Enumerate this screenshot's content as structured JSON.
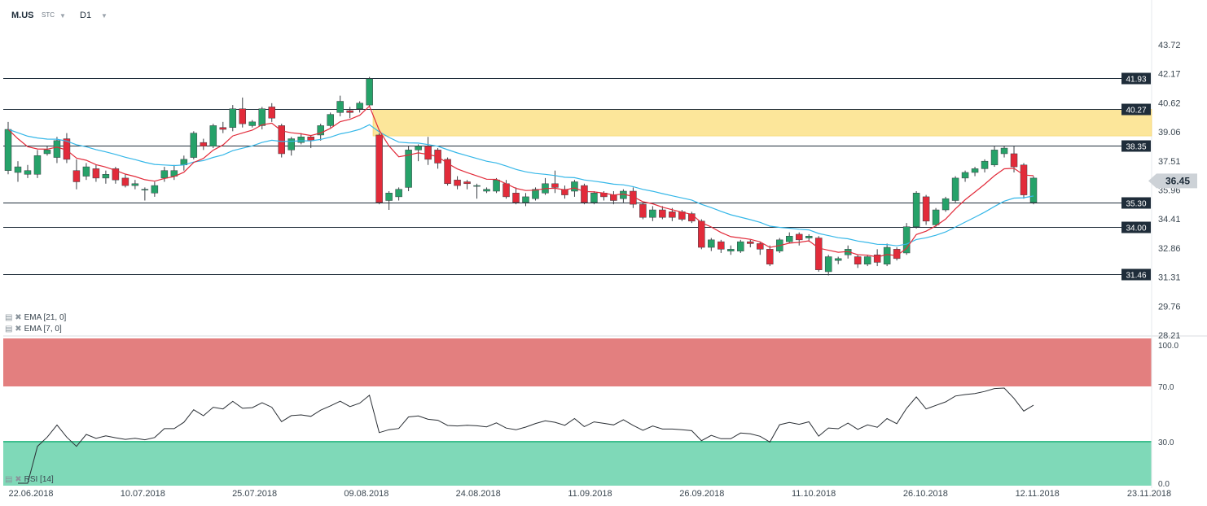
{
  "header": {
    "symbol": "M.US",
    "mode": "STC",
    "timeframe": "D1"
  },
  "indicators": [
    {
      "label": "EMA [21, 0]"
    },
    {
      "label": "EMA [7, 0]"
    }
  ],
  "rsi_label": "RSI [14]",
  "current_price": "36.45",
  "colors": {
    "bull": "#26a269",
    "bear": "#e22b3a",
    "ema7": "#e22b3a",
    "ema21": "#35b7e8",
    "zone": "#fce69a",
    "rsi_overbought": "#e37f7f",
    "rsi_oversold": "#7fd9b8"
  },
  "chart_data": {
    "type": "candlestick",
    "price_axis_ticks": [
      "43.72",
      "42.17",
      "40.62",
      "39.06",
      "37.51",
      "35.96",
      "34.41",
      "32.86",
      "31.31",
      "29.76",
      "28.21"
    ],
    "price_range": [
      28.21,
      43.72
    ],
    "date_labels": [
      "22.06.2018",
      "10.07.2018",
      "25.07.2018",
      "09.08.2018",
      "24.08.2018",
      "11.09.2018",
      "26.09.2018",
      "11.10.2018",
      "26.10.2018",
      "12.11.2018",
      "23.11.2018"
    ],
    "levels": [
      {
        "label": "41.93",
        "value": 41.93
      },
      {
        "label": "40.27",
        "value": 40.27
      },
      {
        "label": "38.35",
        "value": 38.35
      },
      {
        "label": "35.30",
        "value": 35.3
      },
      {
        "label": "34.00",
        "value": 34.0
      },
      {
        "label": "31.46",
        "value": 31.46
      }
    ],
    "zone": [
      38.85,
      40.27
    ],
    "candles": [
      [
        37.0,
        39.2,
        36.8,
        39.6
      ],
      [
        36.9,
        37.2,
        36.4,
        37.5
      ],
      [
        36.8,
        37.0,
        36.6,
        37.3
      ],
      [
        36.8,
        37.8,
        36.6,
        38.1
      ],
      [
        37.9,
        38.1,
        37.8,
        38.3
      ],
      [
        37.7,
        38.6,
        37.4,
        38.8
      ],
      [
        38.7,
        37.6,
        37.4,
        39.0
      ],
      [
        37.0,
        36.4,
        36.0,
        37.6
      ],
      [
        36.7,
        37.2,
        36.5,
        37.4
      ],
      [
        37.1,
        36.6,
        36.4,
        37.3
      ],
      [
        36.6,
        36.8,
        36.3,
        37.0
      ],
      [
        37.1,
        36.5,
        36.3,
        37.2
      ],
      [
        36.6,
        36.2,
        36.1,
        36.8
      ],
      [
        36.2,
        36.3,
        36.0,
        36.5
      ],
      [
        36.0,
        36.0,
        35.4,
        36.1
      ],
      [
        35.8,
        36.2,
        35.6,
        36.4
      ],
      [
        36.6,
        37.0,
        36.4,
        37.2
      ],
      [
        36.7,
        37.0,
        36.5,
        37.3
      ],
      [
        37.3,
        37.6,
        37.0,
        37.8
      ],
      [
        37.7,
        39.0,
        37.6,
        39.1
      ],
      [
        38.5,
        38.3,
        38.1,
        38.7
      ],
      [
        38.3,
        39.4,
        38.2,
        39.5
      ],
      [
        39.3,
        39.2,
        39.0,
        39.6
      ],
      [
        39.3,
        40.3,
        39.1,
        40.5
      ],
      [
        40.3,
        39.5,
        39.3,
        40.9
      ],
      [
        39.4,
        39.6,
        39.3,
        39.7
      ],
      [
        39.4,
        40.3,
        39.2,
        40.4
      ],
      [
        40.4,
        39.8,
        39.6,
        40.6
      ],
      [
        39.4,
        37.9,
        37.7,
        39.5
      ],
      [
        38.1,
        38.7,
        37.8,
        38.8
      ],
      [
        38.5,
        38.8,
        38.4,
        39.0
      ],
      [
        38.8,
        38.6,
        38.2,
        38.9
      ],
      [
        38.9,
        39.4,
        38.6,
        39.5
      ],
      [
        39.4,
        40.0,
        39.3,
        40.1
      ],
      [
        40.1,
        40.7,
        39.9,
        41.0
      ],
      [
        40.2,
        40.1,
        39.8,
        40.4
      ],
      [
        40.3,
        40.6,
        40.1,
        40.7
      ],
      [
        40.5,
        41.9,
        40.4,
        42.0
      ],
      [
        38.9,
        35.3,
        35.2,
        39.0
      ],
      [
        35.4,
        35.8,
        34.9,
        35.9
      ],
      [
        35.6,
        36.0,
        35.4,
        36.1
      ],
      [
        36.1,
        38.1,
        35.9,
        38.3
      ],
      [
        38.1,
        38.3,
        37.5,
        38.4
      ],
      [
        38.3,
        37.6,
        37.3,
        38.8
      ],
      [
        38.1,
        37.4,
        37.1,
        38.2
      ],
      [
        37.6,
        36.3,
        36.2,
        37.7
      ],
      [
        36.5,
        36.2,
        36.0,
        36.7
      ],
      [
        36.4,
        36.3,
        36.0,
        36.5
      ],
      [
        36.2,
        36.2,
        35.5,
        36.3
      ],
      [
        35.9,
        36.0,
        35.8,
        36.1
      ],
      [
        35.9,
        36.5,
        35.8,
        36.6
      ],
      [
        36.3,
        35.6,
        35.5,
        36.5
      ],
      [
        35.8,
        35.3,
        35.2,
        36.1
      ],
      [
        35.3,
        35.6,
        35.1,
        35.8
      ],
      [
        35.5,
        36.0,
        35.4,
        36.1
      ],
      [
        35.8,
        36.3,
        35.7,
        36.6
      ],
      [
        36.3,
        36.1,
        35.8,
        37.0
      ],
      [
        36.0,
        35.7,
        35.5,
        36.2
      ],
      [
        35.9,
        36.4,
        35.6,
        36.5
      ],
      [
        36.2,
        35.3,
        35.2,
        36.3
      ],
      [
        35.3,
        35.8,
        35.2,
        35.9
      ],
      [
        35.8,
        35.6,
        35.4,
        35.9
      ],
      [
        35.7,
        35.4,
        35.2,
        35.9
      ],
      [
        35.5,
        35.9,
        35.3,
        36.0
      ],
      [
        35.9,
        35.2,
        35.0,
        36.1
      ],
      [
        35.2,
        34.5,
        34.4,
        35.3
      ],
      [
        34.5,
        34.9,
        34.3,
        35.1
      ],
      [
        34.9,
        34.5,
        34.4,
        35.1
      ],
      [
        34.8,
        34.5,
        34.3,
        35.0
      ],
      [
        34.8,
        34.4,
        34.3,
        34.9
      ],
      [
        34.7,
        34.3,
        34.2,
        34.8
      ],
      [
        34.3,
        32.9,
        32.8,
        34.4
      ],
      [
        32.9,
        33.3,
        32.7,
        33.4
      ],
      [
        33.2,
        32.8,
        32.6,
        33.3
      ],
      [
        32.7,
        32.8,
        32.5,
        33.0
      ],
      [
        32.7,
        33.2,
        32.6,
        33.3
      ],
      [
        33.2,
        33.1,
        32.9,
        33.3
      ],
      [
        33.1,
        32.8,
        32.5,
        33.2
      ],
      [
        32.8,
        32.0,
        31.9,
        33.0
      ],
      [
        32.7,
        33.3,
        32.6,
        33.4
      ],
      [
        33.2,
        33.5,
        33.1,
        33.7
      ],
      [
        33.6,
        33.3,
        33.0,
        33.7
      ],
      [
        33.4,
        33.5,
        33.2,
        33.6
      ],
      [
        33.4,
        31.7,
        31.6,
        33.5
      ],
      [
        31.6,
        32.4,
        31.4,
        32.5
      ],
      [
        32.2,
        32.3,
        32.0,
        32.4
      ],
      [
        32.5,
        32.8,
        32.3,
        33.0
      ],
      [
        32.4,
        32.0,
        31.8,
        32.5
      ],
      [
        32.0,
        32.4,
        31.9,
        32.5
      ],
      [
        32.5,
        32.1,
        31.9,
        32.8
      ],
      [
        32.0,
        32.9,
        31.9,
        33.1
      ],
      [
        32.8,
        32.3,
        32.2,
        32.9
      ],
      [
        32.6,
        34.0,
        32.5,
        34.2
      ],
      [
        34.0,
        35.8,
        33.9,
        35.9
      ],
      [
        35.6,
        34.3,
        34.1,
        35.7
      ],
      [
        34.1,
        34.9,
        34.0,
        35.0
      ],
      [
        34.9,
        35.5,
        34.8,
        35.6
      ],
      [
        35.4,
        36.6,
        35.3,
        36.7
      ],
      [
        36.6,
        36.9,
        36.4,
        37.0
      ],
      [
        36.9,
        37.1,
        36.7,
        37.2
      ],
      [
        37.1,
        37.5,
        36.9,
        37.6
      ],
      [
        37.3,
        38.1,
        37.2,
        38.3
      ],
      [
        37.9,
        38.2,
        37.7,
        38.3
      ],
      [
        37.9,
        37.2,
        36.9,
        38.3
      ],
      [
        37.3,
        35.7,
        35.5,
        37.4
      ],
      [
        35.3,
        36.6,
        35.2,
        36.7
      ]
    ],
    "rsi": {
      "levels": [
        100.0,
        70.0,
        30.0,
        0.0
      ],
      "labels": [
        "100.0",
        "70.0",
        "30.0",
        "0.0"
      ],
      "range": [
        0,
        100
      ]
    }
  }
}
